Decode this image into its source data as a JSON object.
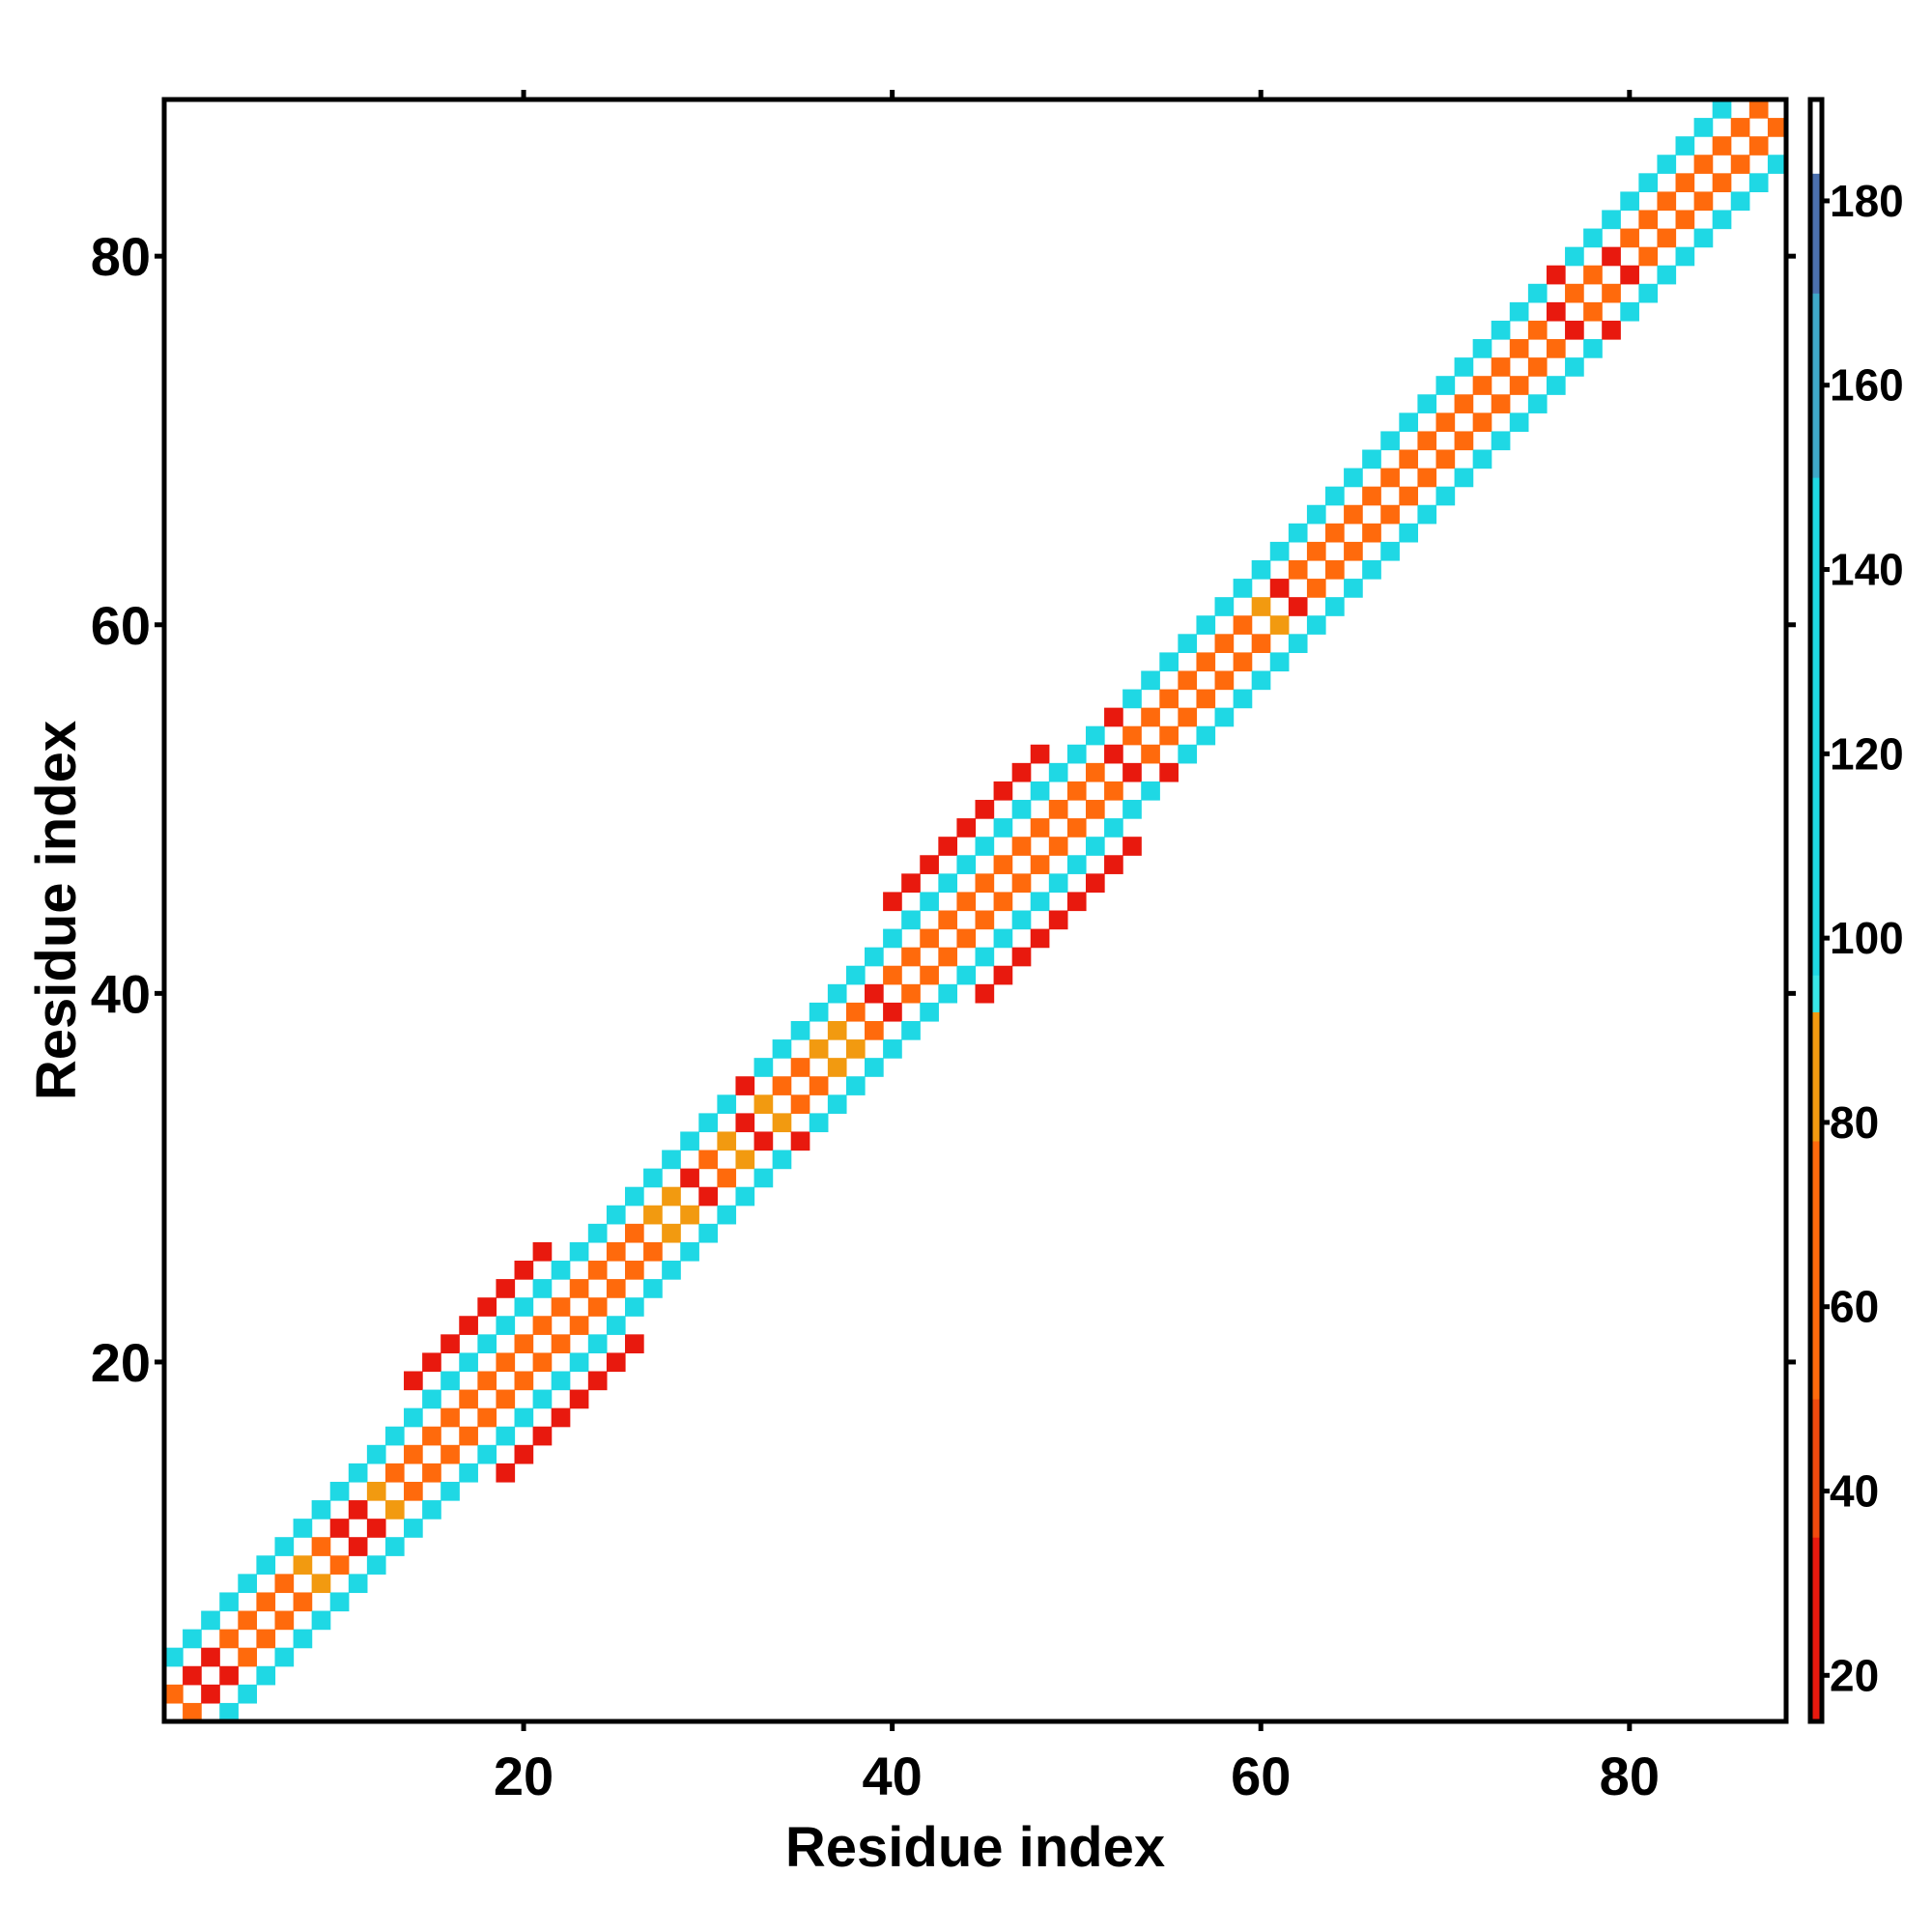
{
  "chart_data": {
    "type": "heatmap",
    "title": "",
    "xlabel": "Residue index",
    "ylabel": "Residue index",
    "xlim": [
      0.5,
      88.5
    ],
    "ylim": [
      0.5,
      88.5
    ],
    "xticks": [
      20,
      40,
      60,
      80
    ],
    "yticks": [
      20,
      40,
      60,
      80
    ],
    "grid": false,
    "colorbar": {
      "ticks": [
        20,
        40,
        60,
        80,
        100,
        120,
        140,
        160,
        180
      ],
      "range": [
        15,
        191
      ],
      "bins": [
        {
          "from": 15,
          "to": 35,
          "color": "#e8190e"
        },
        {
          "from": 35,
          "to": 50,
          "color": "#f04a0e"
        },
        {
          "from": 50,
          "to": 78,
          "color": "#ff6a0c"
        },
        {
          "from": 78,
          "to": 92,
          "color": "#f29a10"
        },
        {
          "from": 92,
          "to": 96,
          "color": "#38e6e6"
        },
        {
          "from": 96,
          "to": 150,
          "color": "#1fd8e4"
        },
        {
          "from": 150,
          "to": 170,
          "color": "#3fa8c8"
        },
        {
          "from": 170,
          "to": 183,
          "color": "#4b70ae"
        },
        {
          "from": 183,
          "to": 191,
          "color": "#ffffff"
        }
      ]
    },
    "diagonal_band": {
      "description": "nonzero cells lie along the diagonal; cells with |i-j| odd and <= width are filled",
      "width_by_segment": [
        {
          "from": 1,
          "to": 13,
          "width": 3
        },
        {
          "from": 14,
          "to": 26,
          "width": 5
        },
        {
          "from": 27,
          "to": 39,
          "width": 3
        },
        {
          "from": 40,
          "to": 53,
          "width": 5
        },
        {
          "from": 54,
          "to": 88,
          "width": 3
        }
      ],
      "value_by_offset": {
        "1": 55,
        "3": 120,
        "5": 30
      },
      "orange_rows": [
        8,
        12,
        27,
        28,
        31,
        33,
        36,
        37,
        60,
        61
      ],
      "red_rows": [
        2,
        3,
        10,
        11,
        29,
        32,
        39,
        52,
        61,
        76,
        79
      ]
    }
  }
}
